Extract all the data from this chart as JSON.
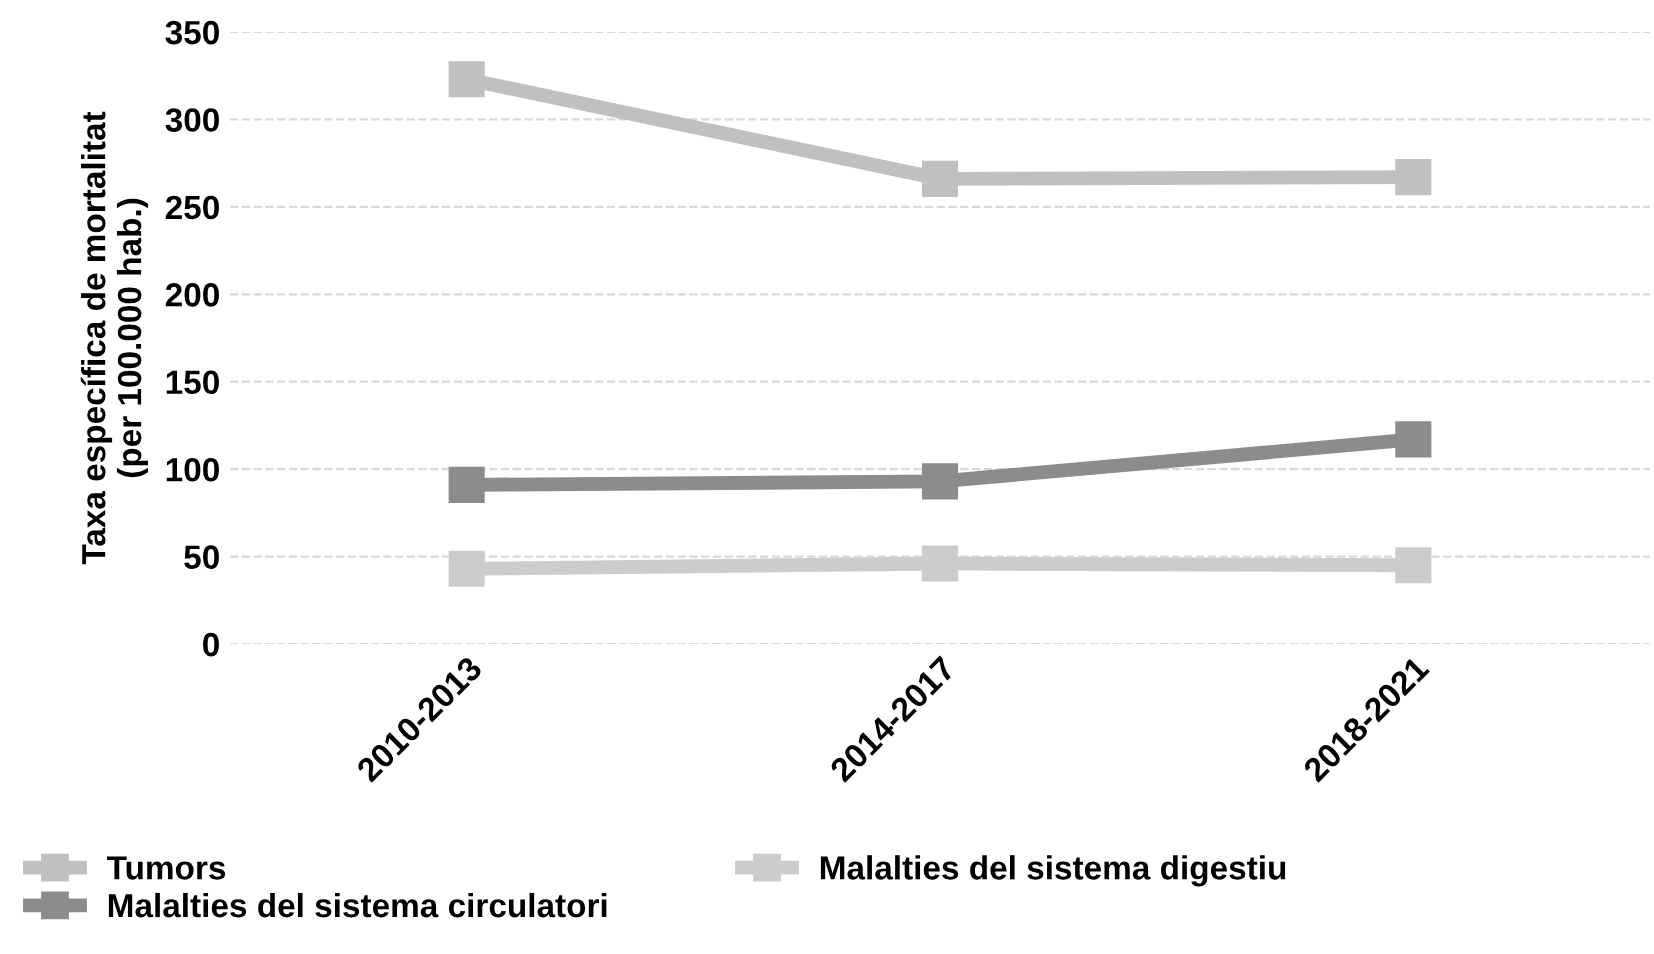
{
  "chart_data": {
    "type": "line",
    "ylabel": "Taxa específica de mortalitat\n(per 100.000 hab.)",
    "categories": [
      "2010-2013",
      "2014-2017",
      "2018-2021"
    ],
    "series": [
      {
        "name": "Tumors",
        "color": "#c0c0c0",
        "values": [
          323,
          266,
          267
        ]
      },
      {
        "name": "Malalties del sistema circulatori",
        "color": "#8c8c8c",
        "values": [
          91,
          93,
          117
        ]
      },
      {
        "name": "Malalties del sistema digestiu",
        "color": "#cccccc",
        "values": [
          43,
          46,
          45
        ]
      }
    ],
    "ylim": [
      0,
      350
    ],
    "yticks": [
      0,
      50,
      100,
      150,
      200,
      250,
      300,
      350
    ],
    "grid": "y",
    "legend": "bottom",
    "marker": "square",
    "line_style": "solid"
  }
}
